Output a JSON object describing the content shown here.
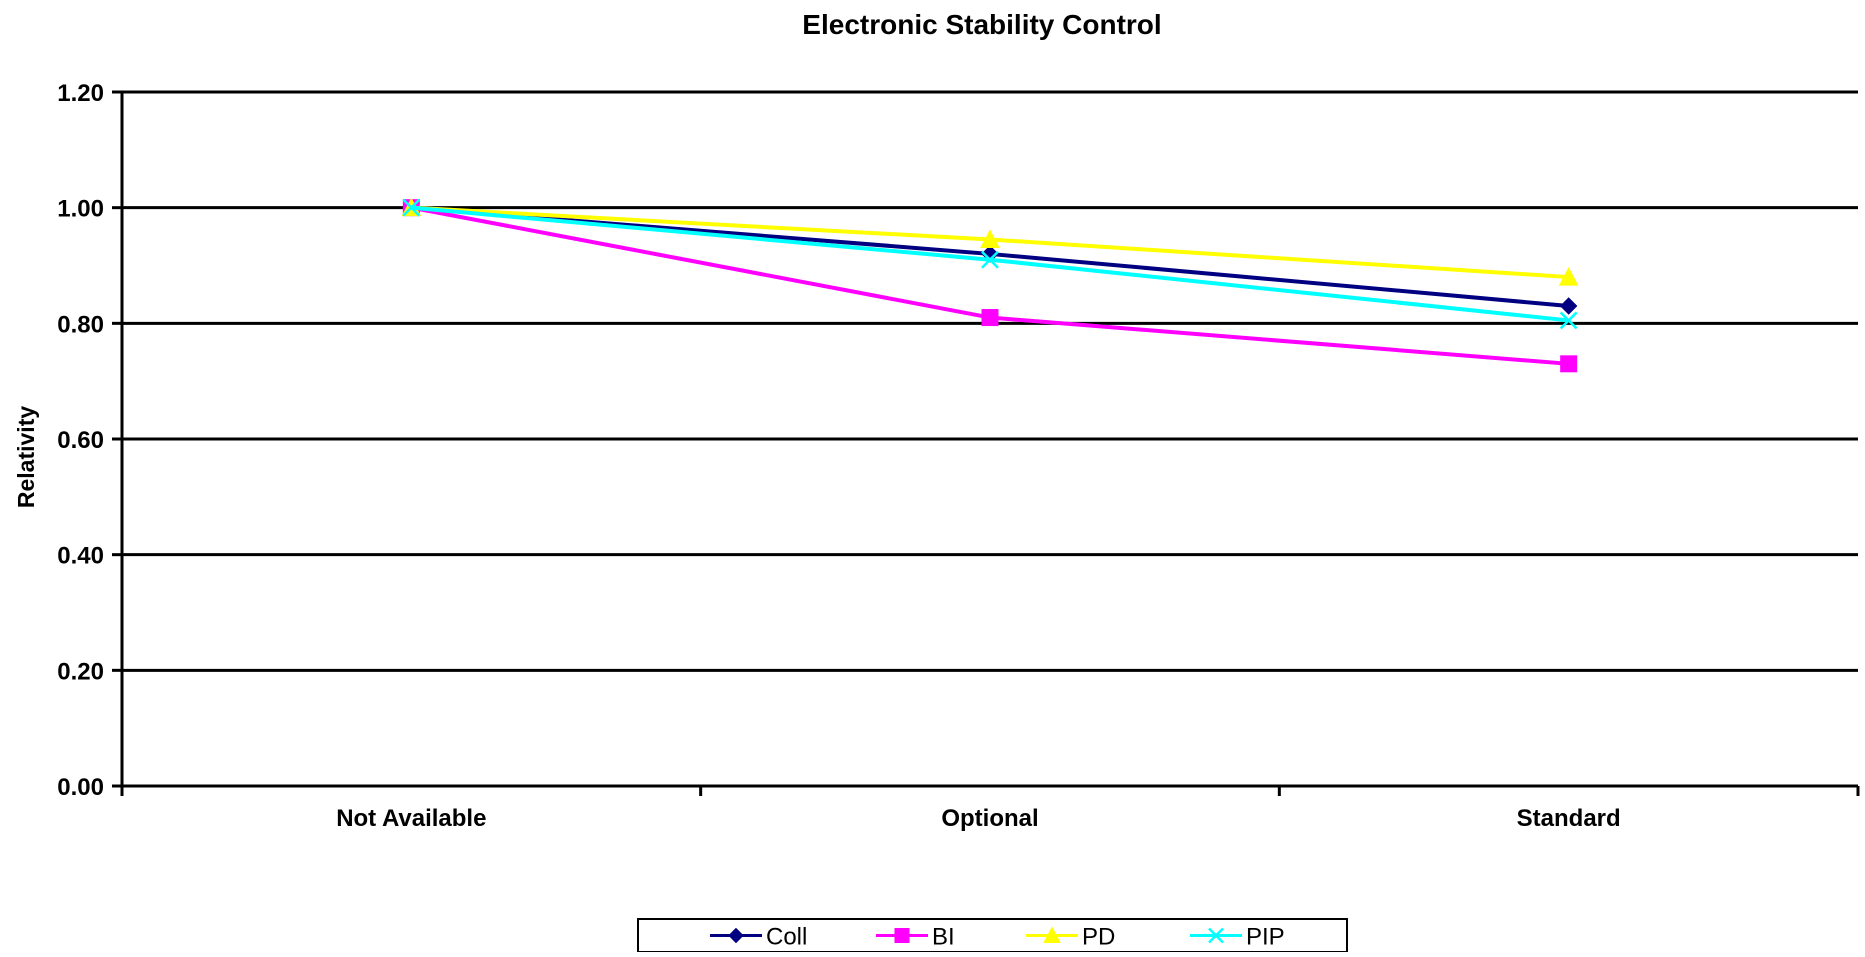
{
  "chart_data": {
    "type": "line",
    "title": "Electronic Stability Control",
    "xlabel": "",
    "ylabel": "Relativity",
    "categories": [
      "Not Available",
      "Optional",
      "Standard"
    ],
    "ylim": [
      0,
      1.2
    ],
    "yticks": [
      "0.00",
      "0.20",
      "0.40",
      "0.60",
      "0.80",
      "1.00",
      "1.20"
    ],
    "grid": true,
    "legend_position": "bottom",
    "series": [
      {
        "name": "Coll",
        "values": [
          1.0,
          0.92,
          0.83
        ],
        "color": "#000080",
        "marker": "diamond"
      },
      {
        "name": "BI",
        "values": [
          1.0,
          0.81,
          0.73
        ],
        "color": "#ff00ff",
        "marker": "square"
      },
      {
        "name": "PD",
        "values": [
          1.0,
          0.945,
          0.88
        ],
        "color": "#ffff00",
        "marker": "triangle"
      },
      {
        "name": "PIP",
        "values": [
          1.0,
          0.91,
          0.805
        ],
        "color": "#00ffff",
        "marker": "x"
      }
    ]
  }
}
